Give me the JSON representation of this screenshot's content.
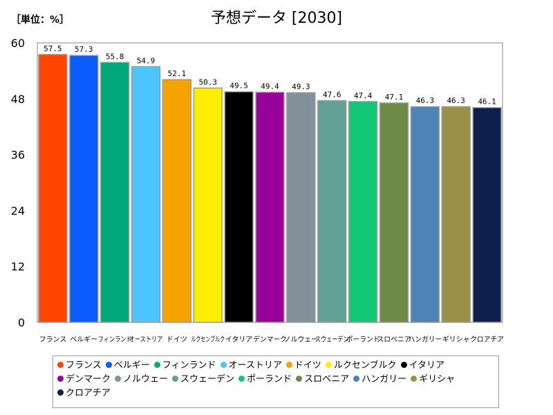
{
  "title": "予想データ [2030]",
  "unit_label": "［単位：%］",
  "chart_data": {
    "type": "bar",
    "title": "予想データ [2030]",
    "ylabel": "［単位：%］",
    "ylim": [
      0,
      60
    ],
    "yticks": [
      0,
      12,
      24,
      36,
      48,
      60
    ],
    "grid": false,
    "legend_position": "bottom",
    "categories": [
      "フランス",
      "ベルギー",
      "フィンランド",
      "オーストリア",
      "ドイツ",
      "ルクセンブルク",
      "イタリア",
      "デンマーク",
      "ノルウェー",
      "スウェーデン",
      "ポーランド",
      "スロベニア",
      "ハンガリー",
      "ギリシャ",
      "クロアチア"
    ],
    "values": [
      57.5,
      57.3,
      55.8,
      54.9,
      52.1,
      50.3,
      49.5,
      49.4,
      49.3,
      47.6,
      47.4,
      47.1,
      46.3,
      46.3,
      46.1
    ],
    "value_labels": [
      "57.5",
      "57.3",
      "55.8",
      "54.9",
      "52.1",
      "50.3",
      "49.5",
      "49.4",
      "49.3",
      "47.6",
      "47.4",
      "47.1",
      "46.3",
      "46.3",
      "46.1"
    ],
    "colors": [
      "#ff4500",
      "#0a5cff",
      "#00a87a",
      "#4cc4ff",
      "#f5a300",
      "#ffee00",
      "#000000",
      "#980099",
      "#838f9a",
      "#63a095",
      "#12c877",
      "#6e8a49",
      "#4d83b5",
      "#9a9048",
      "#0c1f4d"
    ]
  }
}
